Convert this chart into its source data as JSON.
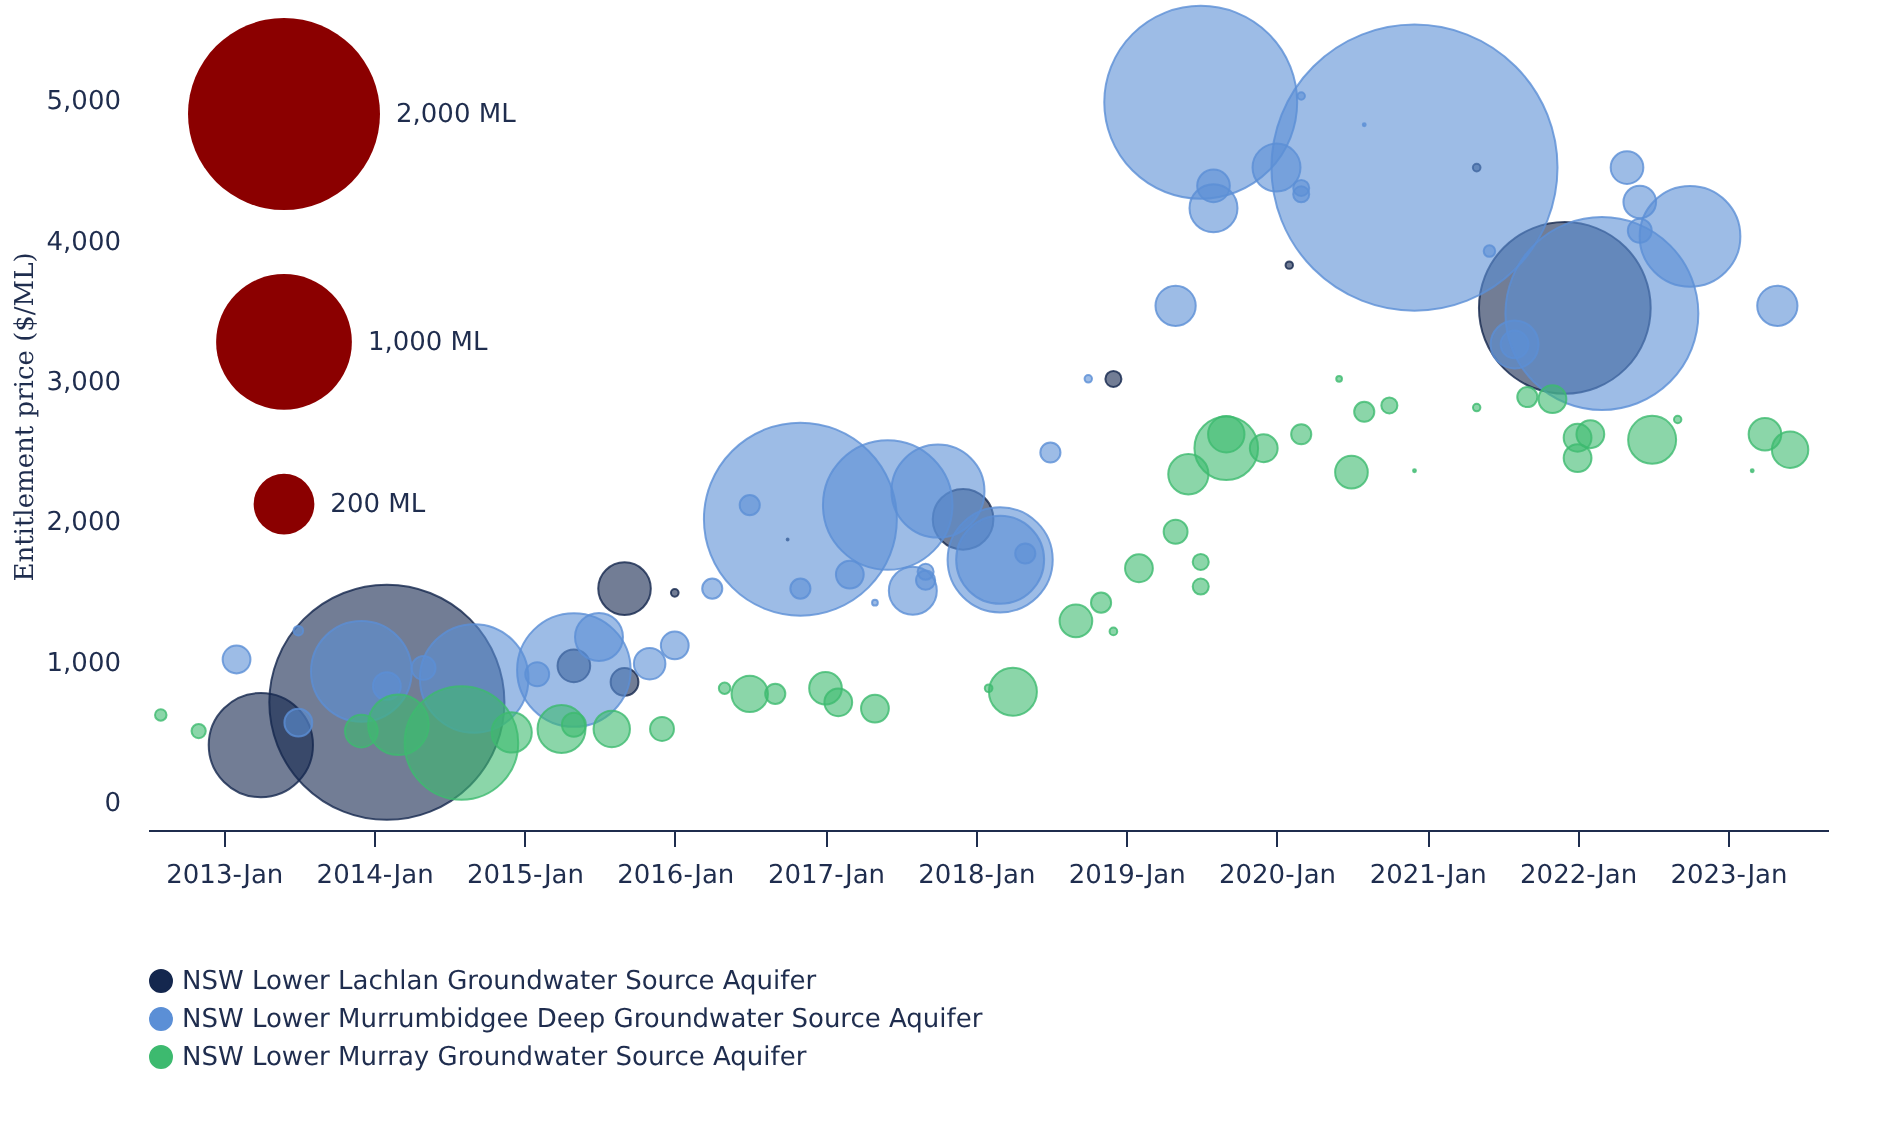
{
  "chart_data": {
    "type": "bubble",
    "ylabel": "Entitlement price ($/ML)",
    "xlim": [
      "2012-07",
      "2023-09"
    ],
    "ylim": [
      -200,
      5700
    ],
    "xticks": [
      {
        "value": "2013-01",
        "label": "2013-Jan"
      },
      {
        "value": "2014-01",
        "label": "2014-Jan"
      },
      {
        "value": "2015-01",
        "label": "2015-Jan"
      },
      {
        "value": "2016-01",
        "label": "2016-Jan"
      },
      {
        "value": "2017-01",
        "label": "2017-Jan"
      },
      {
        "value": "2018-01",
        "label": "2018-Jan"
      },
      {
        "value": "2019-01",
        "label": "2019-Jan"
      },
      {
        "value": "2020-01",
        "label": "2020-Jan"
      },
      {
        "value": "2021-01",
        "label": "2021-Jan"
      },
      {
        "value": "2022-01",
        "label": "2022-Jan"
      },
      {
        "value": "2023-01",
        "label": "2023-Jan"
      }
    ],
    "yticks": [
      {
        "value": 0,
        "label": "0"
      },
      {
        "value": 1000,
        "label": "1,000"
      },
      {
        "value": 2000,
        "label": "2,000"
      },
      {
        "value": 3000,
        "label": "3,000"
      },
      {
        "value": 4000,
        "label": "4,000"
      },
      {
        "value": 5000,
        "label": "5,000"
      }
    ],
    "size_legend": [
      {
        "value": 2000,
        "label": "2,000 ML"
      },
      {
        "value": 1000,
        "label": "1,000 ML"
      },
      {
        "value": 200,
        "label": "200 ML"
      }
    ],
    "grid": false,
    "legend": "bottom",
    "series": [
      {
        "name": "NSW Lower Lachlan Groundwater Source Aquifer",
        "color": "#14274e",
        "x": [
          "2013-04",
          "2014-02",
          "2015-05",
          "2015-09",
          "2015-09",
          "2016-01",
          "2016-10",
          "2017-12",
          "2018-12",
          "2020-02",
          "2021-05",
          "2021-12"
        ],
        "values": [
          405,
          710,
          970,
          855,
          1520,
          1490,
          1870,
          2014,
          3014,
          3825,
          4520,
          3520
        ],
        "sizes": [
          590,
          3000,
          58,
          42,
          150,
          3.2,
          0.2,
          200,
          14,
          3,
          3.2,
          1600
        ]
      },
      {
        "name": "NSW Lower Murrumbidgee Deep Groundwater Source Aquifer",
        "color": "#5b8fd6",
        "x": [
          "2013-02",
          "2013-07",
          "2013-07",
          "2013-12",
          "2014-02",
          "2014-05",
          "2014-09",
          "2015-02",
          "2015-05",
          "2015-07",
          "2015-11",
          "2016-01",
          "2016-04",
          "2016-07",
          "2016-11",
          "2016-11",
          "2017-03",
          "2017-05",
          "2017-06",
          "2017-08",
          "2017-09",
          "2017-09",
          "2017-10",
          "2018-03",
          "2018-03",
          "2018-05",
          "2018-07",
          "2018-10",
          "2019-05",
          "2019-07",
          "2019-08",
          "2019-08",
          "2020-01",
          "2020-03",
          "2020-03",
          "2020-03",
          "2020-08",
          "2020-12",
          "2021-06",
          "2021-08",
          "2021-08",
          "2022-03",
          "2022-05",
          "2022-06",
          "2022-06",
          "2022-10",
          "2023-05"
        ],
        "values": [
          1015,
          1220,
          565,
          930,
          825,
          955,
          880,
          910,
          940,
          1175,
          985,
          1115,
          1520,
          2115,
          2015,
          1520,
          1620,
          1420,
          2115,
          1505,
          1580,
          1640,
          2215,
          1725,
          1725,
          1770,
          2490,
          3015,
          3535,
          4985,
          4390,
          4230,
          4520,
          4375,
          4330,
          5030,
          4825,
          4520,
          3925,
          3260,
          3260,
          3480,
          4520,
          4275,
          4070,
          4030,
          3535
        ],
        "sizes": [
          42,
          5,
          42,
          550,
          42,
          31,
          640,
          31,
          700,
          125,
          54,
          42,
          22,
          22,
          2020,
          22,
          42,
          1.8,
          910,
          125,
          20,
          14,
          470,
          600,
          420,
          22,
          22,
          3,
          88,
          2020,
          58,
          125,
          125,
          14,
          14,
          3,
          0.45,
          4440,
          7.2,
          125,
          42,
          2020,
          58,
          58,
          31,
          550,
          88
        ]
      },
      {
        "name": "NSW Lower Murray Groundwater Source Aquifer",
        "color": "#3dba6f",
        "x": [
          "2012-08",
          "2012-11",
          "2013-12",
          "2014-03",
          "2014-08",
          "2014-12",
          "2015-04",
          "2015-05",
          "2015-08",
          "2015-12",
          "2016-05",
          "2016-07",
          "2016-09",
          "2017-01",
          "2017-02",
          "2017-05",
          "2018-02",
          "2018-04",
          "2018-09",
          "2018-11",
          "2018-12",
          "2019-02",
          "2019-05",
          "2019-06",
          "2019-07",
          "2019-07",
          "2019-09",
          "2019-09",
          "2019-12",
          "2020-03",
          "2020-06",
          "2020-07",
          "2020-08",
          "2020-10",
          "2020-12",
          "2021-05",
          "2021-09",
          "2021-11",
          "2022-01",
          "2022-01",
          "2022-02",
          "2022-07",
          "2022-09",
          "2023-03",
          "2023-04",
          "2023-06"
        ],
        "values": [
          620,
          505,
          505,
          550,
          420,
          495,
          520,
          550,
          520,
          520,
          810,
          770,
          770,
          810,
          710,
          665,
          810,
          785,
          1290,
          1420,
          1215,
          1665,
          1925,
          2335,
          1710,
          1535,
          2520,
          2620,
          2520,
          2620,
          3015,
          2350,
          2780,
          2825,
          2360,
          2810,
          2885,
          2870,
          2595,
          2450,
          2620,
          2580,
          2725,
          2360,
          2620,
          2510
        ],
        "sizes": [
          7.2,
          11,
          58,
          200,
          700,
          88,
          125,
          31,
          72,
          31,
          7.2,
          72,
          22,
          58,
          42,
          42,
          3.2,
          125,
          58,
          22,
          3.2,
          42,
          31,
          88,
          14,
          14,
          220,
          72,
          42,
          22,
          1.8,
          58,
          22,
          14,
          0.45,
          3,
          22,
          42,
          42,
          42,
          42,
          125,
          3,
          0.45,
          58,
          72
        ]
      }
    ]
  }
}
